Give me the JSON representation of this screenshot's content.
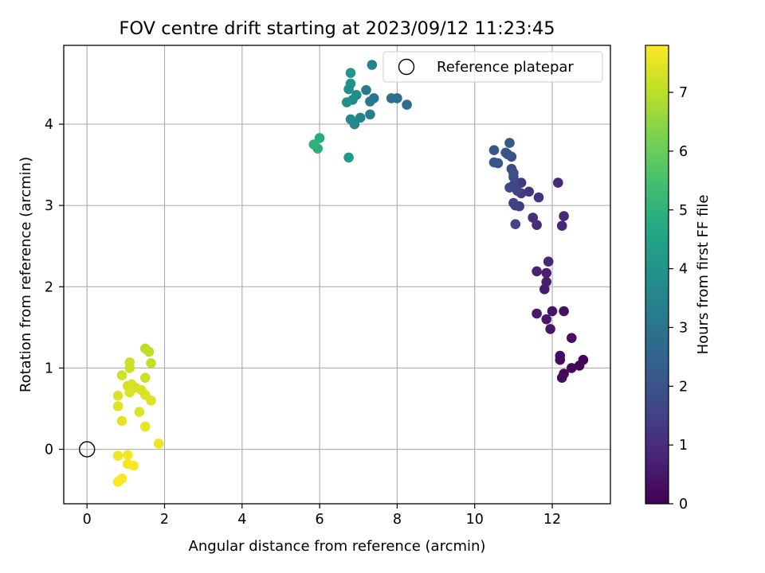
{
  "chart_data": {
    "type": "scatter",
    "title": "FOV centre drift starting at 2023/09/12 11:23:45",
    "xlabel": "Angular distance from reference (arcmin)",
    "ylabel": "Rotation from reference (arcmin)",
    "xlim": [
      -0.6,
      13.5
    ],
    "ylim": [
      -0.67,
      4.97
    ],
    "xticks": [
      0,
      2,
      4,
      6,
      8,
      10,
      12
    ],
    "yticks": [
      0,
      1,
      2,
      3,
      4
    ],
    "grid": true,
    "legend": {
      "placement": "top-right",
      "label": "Reference platepar"
    },
    "reference_point": {
      "x": 0,
      "y": 0
    },
    "colorbar": {
      "label": "Hours from first FF file",
      "min": 0,
      "max": 7.8,
      "ticks": [
        0,
        1,
        2,
        3,
        4,
        5,
        6,
        7
      ],
      "colormap": "viridis"
    },
    "series": [
      {
        "points": [
          [
            12.8,
            1.1,
            0.05
          ],
          [
            12.7,
            1.03,
            0.1
          ],
          [
            12.5,
            1.0,
            0.15
          ],
          [
            12.3,
            0.93,
            0.2
          ],
          [
            12.25,
            0.88,
            0.22
          ],
          [
            12.2,
            1.1,
            0.25
          ],
          [
            12.2,
            1.15,
            0.28
          ],
          [
            12.5,
            1.37,
            0.3
          ],
          [
            12.3,
            1.7,
            0.35
          ],
          [
            12.0,
            1.7,
            0.4
          ],
          [
            11.95,
            1.48,
            0.45
          ],
          [
            11.85,
            1.6,
            0.5
          ],
          [
            11.6,
            1.67,
            0.55
          ],
          [
            11.8,
            1.97,
            0.6
          ],
          [
            11.85,
            2.06,
            0.65
          ],
          [
            11.85,
            2.17,
            0.7
          ],
          [
            11.6,
            2.19,
            0.75
          ],
          [
            11.9,
            2.31,
            0.8
          ],
          [
            12.25,
            2.75,
            0.85
          ],
          [
            12.3,
            2.87,
            0.9
          ],
          [
            12.15,
            3.28,
            0.95
          ],
          [
            11.6,
            2.76,
            1.0
          ],
          [
            11.5,
            2.85,
            1.05
          ],
          [
            11.65,
            3.1,
            1.15
          ],
          [
            11.4,
            3.17,
            1.2
          ],
          [
            11.2,
            3.15,
            1.3
          ],
          [
            11.2,
            3.28,
            1.35
          ],
          [
            11.15,
            2.99,
            1.4
          ],
          [
            11.05,
            3.0,
            1.45
          ],
          [
            11.0,
            3.03,
            1.5
          ],
          [
            11.05,
            2.77,
            1.55
          ],
          [
            11.1,
            3.18,
            1.6
          ],
          [
            11.0,
            3.25,
            1.65
          ],
          [
            10.9,
            3.22,
            1.7
          ],
          [
            11.0,
            3.35,
            1.75
          ],
          [
            10.95,
            3.45,
            1.8
          ],
          [
            11.0,
            3.4,
            1.85
          ],
          [
            10.95,
            3.6,
            1.9
          ],
          [
            10.8,
            3.65,
            1.95
          ],
          [
            10.85,
            3.63,
            2.0
          ],
          [
            10.6,
            3.52,
            2.05
          ],
          [
            10.5,
            3.53,
            2.1
          ],
          [
            10.5,
            3.68,
            2.15
          ],
          [
            10.9,
            3.77,
            2.2
          ],
          [
            8.25,
            4.24,
            2.7
          ],
          [
            8.0,
            4.32,
            2.8
          ],
          [
            7.85,
            4.32,
            2.9
          ],
          [
            7.4,
            4.32,
            3.05
          ],
          [
            7.3,
            4.28,
            3.1
          ],
          [
            7.2,
            4.42,
            3.2
          ],
          [
            7.3,
            4.12,
            3.3
          ],
          [
            7.35,
            4.73,
            3.4
          ],
          [
            7.05,
            4.08,
            3.5
          ],
          [
            6.9,
            4.0,
            3.6
          ],
          [
            6.8,
            4.06,
            3.7
          ],
          [
            6.85,
            4.3,
            3.75
          ],
          [
            6.95,
            4.36,
            3.8
          ],
          [
            6.75,
            4.43,
            3.85
          ],
          [
            6.7,
            4.27,
            3.9
          ],
          [
            6.8,
            4.5,
            3.95
          ],
          [
            6.8,
            4.63,
            4.0
          ],
          [
            6.75,
            3.59,
            4.2
          ],
          [
            6.0,
            3.83,
            4.8
          ],
          [
            5.95,
            3.7,
            4.9
          ],
          [
            5.85,
            3.75,
            5.0
          ],
          [
            1.6,
            1.2,
            7.0
          ],
          [
            1.5,
            1.24,
            7.05
          ],
          [
            1.65,
            1.06,
            7.1
          ],
          [
            1.1,
            1.07,
            7.15
          ],
          [
            1.1,
            1.0,
            7.2
          ],
          [
            1.5,
            0.88,
            7.2
          ],
          [
            0.9,
            0.91,
            7.25
          ],
          [
            1.15,
            0.8,
            7.3
          ],
          [
            1.25,
            0.76,
            7.3
          ],
          [
            1.05,
            0.78,
            7.3
          ],
          [
            1.4,
            0.73,
            7.35
          ],
          [
            1.5,
            0.67,
            7.35
          ],
          [
            1.1,
            0.7,
            7.4
          ],
          [
            0.8,
            0.66,
            7.4
          ],
          [
            1.65,
            0.6,
            7.4
          ],
          [
            0.8,
            0.53,
            7.45
          ],
          [
            1.35,
            0.46,
            7.45
          ],
          [
            0.9,
            0.35,
            7.5
          ],
          [
            1.5,
            0.28,
            7.55
          ],
          [
            1.85,
            0.07,
            7.6
          ],
          [
            0.8,
            -0.08,
            7.65
          ],
          [
            1.05,
            -0.07,
            7.7
          ],
          [
            1.05,
            -0.18,
            7.7
          ],
          [
            1.2,
            -0.2,
            7.75
          ],
          [
            0.9,
            -0.36,
            7.8
          ],
          [
            0.8,
            -0.4,
            7.8
          ]
        ]
      }
    ]
  }
}
